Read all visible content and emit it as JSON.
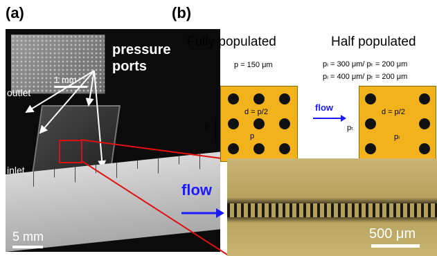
{
  "panels": {
    "a": {
      "label": "(a)",
      "pressure_label_line1": "pressure",
      "pressure_label_line2": "ports",
      "inset_scale": "1 mm",
      "outlet_label": "outlet",
      "inlet_label": "inlet",
      "scale_label": "5 mm"
    },
    "b": {
      "label": "(b)",
      "fully_title": "Fully populated",
      "half_title": "Half populated",
      "fully_param": "p = 150 μm",
      "half_param1": "pₗ = 300 μm/ pₜ = 200 μm",
      "half_param2": "pₗ = 400 μm/ pₜ = 200 μm",
      "fully_d_label": "d = p/2",
      "fully_p_label_h": "p",
      "fully_p_label_v": "p",
      "half_d_label": "d = p/2",
      "half_pl_label": "pₗ",
      "half_pt_label": "pₜ",
      "flow_small": "flow",
      "flow_large": "flow",
      "sem_scale": "500 μm"
    }
  },
  "colors": {
    "pattern_fill": "#f2b21c",
    "flow_text": "#1a1aff",
    "highlight_red": "#e01010"
  }
}
